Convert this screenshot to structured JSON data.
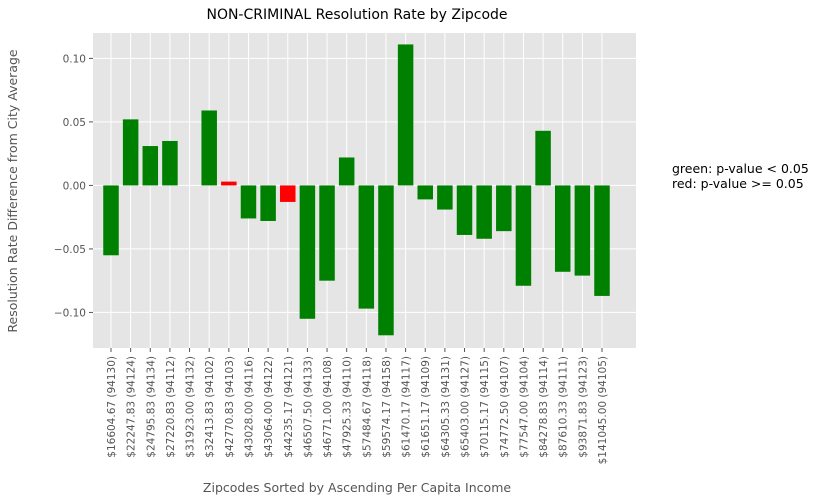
{
  "chart_data": {
    "type": "bar",
    "title": "NON-CRIMINAL Resolution Rate by Zipcode",
    "xlabel": "Zipcodes Sorted by Ascending Per Capita Income",
    "ylabel": "Resolution Rate Difference from City Average",
    "ylim": [
      -0.128,
      0.12
    ],
    "yticks": [
      -0.1,
      -0.05,
      0.0,
      0.05,
      0.1
    ],
    "ytick_labels": [
      "−0.10",
      "−0.05",
      "0.00",
      "0.05",
      "0.10"
    ],
    "grid": true,
    "categories": [
      "$16604.67 (94130)",
      "$22247.83 (94124)",
      "$24795.83 (94134)",
      "$27220.83 (94112)",
      "$31923.00 (94132)",
      "$32413.83 (94102)",
      "$42770.83 (94103)",
      "$43028.00 (94116)",
      "$43064.00 (94122)",
      "$44235.17 (94121)",
      "$46507.50 (94133)",
      "$46771.00 (94108)",
      "$47925.33 (94110)",
      "$57484.67 (94118)",
      "$59574.17 (94158)",
      "$61470.17 (94117)",
      "$61651.17 (94109)",
      "$64305.33 (94131)",
      "$65403.00 (94127)",
      "$70115.17 (94115)",
      "$74772.50 (94107)",
      "$77547.00 (94104)",
      "$84278.83 (94114)",
      "$87610.33 (94111)",
      "$93871.83 (94123)",
      "$141045.00 (94105)"
    ],
    "values": [
      -0.055,
      0.052,
      0.031,
      0.035,
      0.0,
      0.059,
      0.003,
      -0.026,
      -0.028,
      -0.013,
      -0.105,
      -0.075,
      0.022,
      -0.097,
      -0.118,
      0.111,
      -0.011,
      -0.019,
      -0.039,
      -0.042,
      -0.036,
      -0.079,
      0.043,
      -0.068,
      -0.071,
      -0.087
    ],
    "significant": [
      true,
      true,
      true,
      true,
      true,
      true,
      false,
      true,
      true,
      false,
      true,
      true,
      true,
      true,
      true,
      true,
      true,
      true,
      true,
      true,
      true,
      true,
      true,
      true,
      true,
      true
    ],
    "colors": {
      "significant": "#008000",
      "not_significant": "#ff0000"
    },
    "annotations": [
      "green: p-value < 0.05",
      "red: p-value >= 0.05"
    ]
  },
  "style": {
    "plot_background": "#e5e5e5",
    "grid_color": "#ffffff",
    "tick_color": "#555555"
  }
}
